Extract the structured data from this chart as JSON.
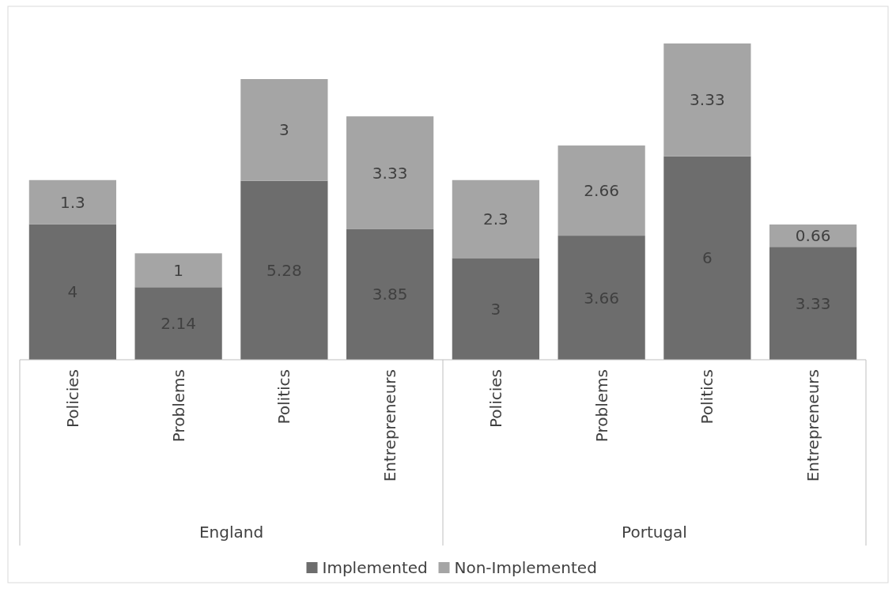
{
  "chart_data": {
    "type": "bar",
    "stacked": true,
    "data_labels": true,
    "legend": "bottom",
    "grid": false,
    "categories": [
      "Policies",
      "Problems",
      "Politics",
      "Entrepreneurs",
      "Policies",
      "Problems",
      "Politics",
      "Entrepreneurs"
    ],
    "annotations": [
      "England",
      "Portugal"
    ],
    "series": [
      {
        "name": "Implemented",
        "color": "#6d6d6d",
        "values": [
          4,
          2.14,
          5.28,
          3.85,
          3,
          3.66,
          6,
          3.33
        ]
      },
      {
        "name": "Non-Implemented",
        "color": "#a5a5a5",
        "values": [
          1.3,
          1,
          3,
          3.33,
          2.3,
          2.66,
          3.33,
          0.66
        ]
      }
    ]
  }
}
